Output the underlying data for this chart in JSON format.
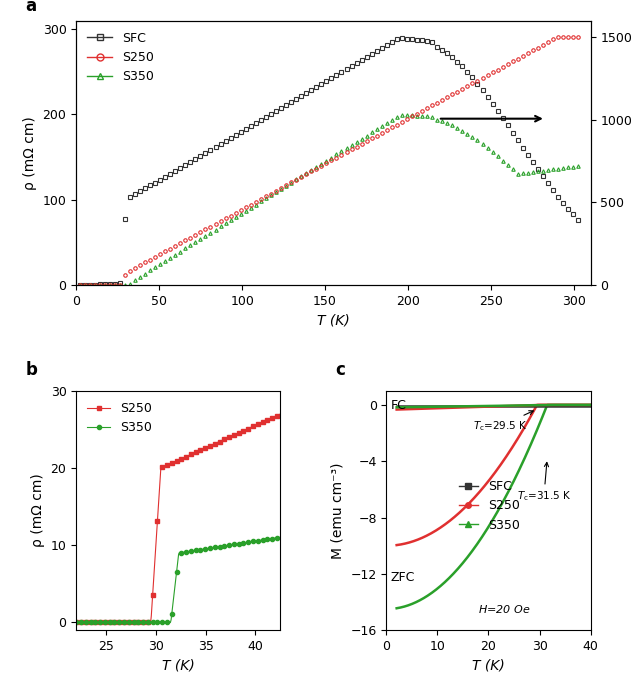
{
  "panel_a": {
    "title_label": "a",
    "xlabel": "T (K)",
    "ylabel_left": "ρ (mΩ cm)",
    "xlim": [
      0,
      310
    ],
    "ylim_left": [
      0,
      310
    ],
    "ylim_right": [
      0,
      1600
    ],
    "yticks_left": [
      0,
      100,
      200,
      300
    ],
    "yticks_right": [
      0,
      500,
      1000,
      1500
    ],
    "xticks": [
      0,
      50,
      100,
      150,
      200,
      250,
      300
    ],
    "sfc_color": "#333333",
    "s250_color": "#e03030",
    "s350_color": "#2aa02a"
  },
  "panel_b": {
    "title_label": "b",
    "xlabel": "T (K)",
    "ylabel": "ρ (mΩ cm)",
    "xlim": [
      22,
      42.5
    ],
    "ylim": [
      -1,
      30
    ],
    "yticks": [
      0,
      10,
      20,
      30
    ],
    "xticks": [
      25,
      30,
      35,
      40
    ],
    "s250_color": "#e03030",
    "s350_color": "#2aa02a"
  },
  "panel_c": {
    "title_label": "c",
    "xlabel": "T (K)",
    "ylabel": "M (emu cm⁻³)",
    "xlim": [
      0,
      40
    ],
    "ylim": [
      -16,
      1
    ],
    "yticks": [
      0,
      -4,
      -8,
      -12,
      -16
    ],
    "xticks": [
      0,
      10,
      20,
      30,
      40
    ],
    "sfc_color": "#333333",
    "s250_color": "#e03030",
    "s350_color": "#2aa02a",
    "tc_s250": 29.5,
    "tc_s350": 31.5
  },
  "background_color": "#ffffff",
  "tick_fontsize": 9,
  "label_fontsize": 10,
  "legend_fontsize": 9,
  "panel_label_fontsize": 12
}
